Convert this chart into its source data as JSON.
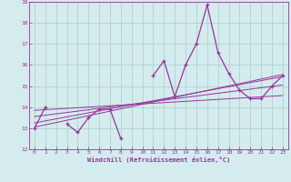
{
  "xlabel": "Windchill (Refroidissement éolien,°C)",
  "x": [
    0,
    1,
    2,
    3,
    4,
    5,
    6,
    7,
    8,
    9,
    10,
    11,
    12,
    13,
    14,
    15,
    16,
    17,
    18,
    19,
    20,
    21,
    22,
    23
  ],
  "y_main": [
    13.0,
    14.0,
    null,
    13.2,
    12.8,
    13.5,
    13.9,
    13.9,
    12.5,
    null,
    null,
    15.5,
    16.2,
    14.5,
    16.0,
    17.0,
    18.85,
    16.6,
    15.6,
    14.8,
    14.4,
    14.4,
    15.0,
    15.5
  ],
  "line_color": "#993399",
  "bg_color": "#d4ecee",
  "grid_color": "#aacccc",
  "ylim": [
    12,
    19
  ],
  "xlim": [
    -0.5,
    23.5
  ],
  "yticks": [
    12,
    13,
    14,
    15,
    16,
    17,
    18,
    19
  ],
  "xticks": [
    0,
    1,
    2,
    3,
    4,
    5,
    6,
    7,
    8,
    9,
    10,
    11,
    12,
    13,
    14,
    15,
    16,
    17,
    18,
    19,
    20,
    21,
    22,
    23
  ],
  "trend_lines": [
    {
      "x0": 0,
      "y0": 13.05,
      "x1": 23,
      "y1": 15.55
    },
    {
      "x0": 0,
      "y0": 13.25,
      "x1": 23,
      "y1": 15.45
    },
    {
      "x0": 0,
      "y0": 13.55,
      "x1": 23,
      "y1": 15.05
    },
    {
      "x0": 0,
      "y0": 13.85,
      "x1": 23,
      "y1": 14.55
    }
  ]
}
